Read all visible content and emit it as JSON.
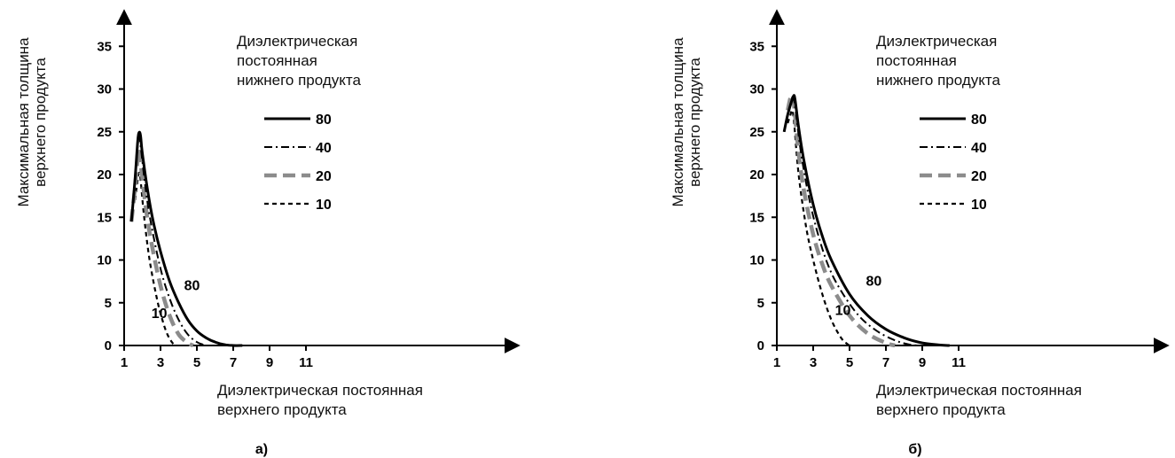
{
  "chart_data": [
    {
      "type": "line",
      "panel_label": "а)",
      "ylabel": [
        "Максимальная толщина",
        "верхнего продукта"
      ],
      "xlabel": [
        "Диэлектрическая постоянная",
        "верхнего продукта"
      ],
      "legend_title": [
        "Диэлектрическая",
        "постоянная",
        "нижнего продукта"
      ],
      "legend_placement": "top-right",
      "xlim": [
        1,
        12
      ],
      "ylim": [
        0,
        38
      ],
      "xticks": [
        "1",
        "3",
        "5",
        "7",
        "9",
        "11"
      ],
      "yticks": [
        "0",
        "5",
        "10",
        "15",
        "20",
        "25",
        "30",
        "35"
      ],
      "grid": false,
      "annotations": [
        {
          "text": "80",
          "x": 4.3,
          "y": 6.5
        },
        {
          "text": "10",
          "x": 2.5,
          "y": 3.2
        }
      ],
      "series": [
        {
          "name": "80",
          "style": "solid",
          "x": [
            1.4,
            1.6,
            1.75,
            1.82,
            1.9,
            2.0,
            2.3,
            2.6,
            3.0,
            3.5,
            4.0,
            4.5,
            5.0,
            5.5,
            6.0,
            6.5,
            7.0,
            7.5
          ],
          "y": [
            14.5,
            19.5,
            24.0,
            24.9,
            24.6,
            22.5,
            18.0,
            14.5,
            11.0,
            7.5,
            5.0,
            3.0,
            1.7,
            0.9,
            0.4,
            0.1,
            0.0,
            0.0
          ]
        },
        {
          "name": "40",
          "style": "dashdot",
          "x": [
            1.4,
            1.6,
            1.75,
            1.82,
            1.9,
            2.2,
            2.5,
            3.0,
            3.5,
            4.0,
            4.5,
            5.0,
            5.5
          ],
          "y": [
            14.5,
            19.5,
            23.5,
            24.5,
            23.5,
            18.0,
            14.0,
            9.0,
            5.5,
            3.0,
            1.3,
            0.4,
            0.0
          ]
        },
        {
          "name": "20",
          "style": "dashed-gray",
          "x": [
            1.4,
            1.6,
            1.75,
            1.82,
            1.9,
            2.2,
            2.5,
            3.0,
            3.5,
            4.0,
            4.5,
            4.8
          ],
          "y": [
            14.5,
            18.5,
            22.0,
            23.0,
            21.5,
            16.0,
            12.0,
            7.0,
            3.5,
            1.3,
            0.3,
            0.0
          ]
        },
        {
          "name": "10",
          "style": "dotted",
          "x": [
            1.6,
            1.75,
            1.82,
            1.9,
            2.1,
            2.4,
            2.8,
            3.1,
            3.4,
            3.7,
            3.9
          ],
          "y": [
            17.0,
            19.5,
            20.2,
            19.5,
            15.0,
            10.0,
            5.5,
            3.0,
            1.2,
            0.2,
            0.0
          ]
        }
      ]
    },
    {
      "type": "line",
      "panel_label": "б)",
      "ylabel": [
        "Максимальная толщина",
        "верхнего продукта"
      ],
      "xlabel": [
        "Диэлектрическая постоянная",
        "верхнего продукта"
      ],
      "legend_title": [
        "Диэлектрическая",
        "постоянная",
        "нижнего продукта"
      ],
      "legend_placement": "top-right",
      "xlim": [
        1,
        12
      ],
      "ylim": [
        0,
        38
      ],
      "xticks": [
        "1",
        "3",
        "5",
        "7",
        "9",
        "11"
      ],
      "yticks": [
        "0",
        "5",
        "10",
        "15",
        "20",
        "25",
        "30",
        "35"
      ],
      "grid": false,
      "annotations": [
        {
          "text": "80",
          "x": 5.9,
          "y": 7.0
        },
        {
          "text": "10",
          "x": 4.2,
          "y": 3.6
        }
      ],
      "series": [
        {
          "name": "80",
          "style": "solid",
          "x": [
            1.4,
            1.6,
            1.8,
            1.92,
            2.0,
            2.2,
            2.5,
            3.0,
            3.5,
            4.0,
            5.0,
            6.0,
            7.0,
            8.0,
            9.0,
            10.0,
            10.5
          ],
          "y": [
            25.0,
            27.0,
            28.5,
            29.2,
            28.8,
            25.5,
            21.5,
            16.5,
            12.8,
            10.0,
            6.0,
            3.5,
            1.9,
            0.9,
            0.3,
            0.05,
            0.0
          ]
        },
        {
          "name": "40",
          "style": "dashdot",
          "x": [
            1.4,
            1.6,
            1.8,
            1.9,
            2.0,
            2.3,
            2.7,
            3.2,
            3.8,
            4.5,
            5.5,
            6.5,
            7.5,
            8.3,
            8.8
          ],
          "y": [
            25.0,
            27.0,
            28.5,
            29.0,
            28.0,
            23.0,
            18.0,
            13.5,
            9.5,
            6.5,
            3.5,
            1.7,
            0.6,
            0.1,
            0.0
          ]
        },
        {
          "name": "20",
          "style": "dashed-gray",
          "x": [
            1.6,
            1.75,
            1.85,
            1.95,
            2.2,
            2.5,
            3.0,
            3.5,
            4.0,
            5.0,
            6.0,
            7.0,
            7.5
          ],
          "y": [
            27.5,
            29.0,
            29.3,
            28.0,
            22.5,
            18.0,
            13.0,
            9.5,
            7.0,
            3.5,
            1.4,
            0.3,
            0.0
          ]
        },
        {
          "name": "10",
          "style": "dotted",
          "x": [
            1.6,
            1.75,
            1.85,
            1.95,
            2.2,
            2.6,
            3.0,
            3.5,
            4.0,
            4.5,
            4.8,
            5.0
          ],
          "y": [
            26.0,
            27.0,
            27.5,
            26.0,
            20.0,
            14.0,
            10.0,
            6.0,
            3.0,
            1.0,
            0.3,
            0.0
          ]
        }
      ]
    }
  ],
  "legend_styles": {
    "solid": {
      "color": "#000000",
      "width": 3,
      "dash": ""
    },
    "dashdot": {
      "color": "#000000",
      "width": 2,
      "dash": "9 4 2 4"
    },
    "dashed-gray": {
      "color": "#8c8c8c",
      "width": 4.5,
      "dash": "14 7"
    },
    "dotted": {
      "color": "#000000",
      "width": 2.2,
      "dash": "5 4"
    }
  }
}
